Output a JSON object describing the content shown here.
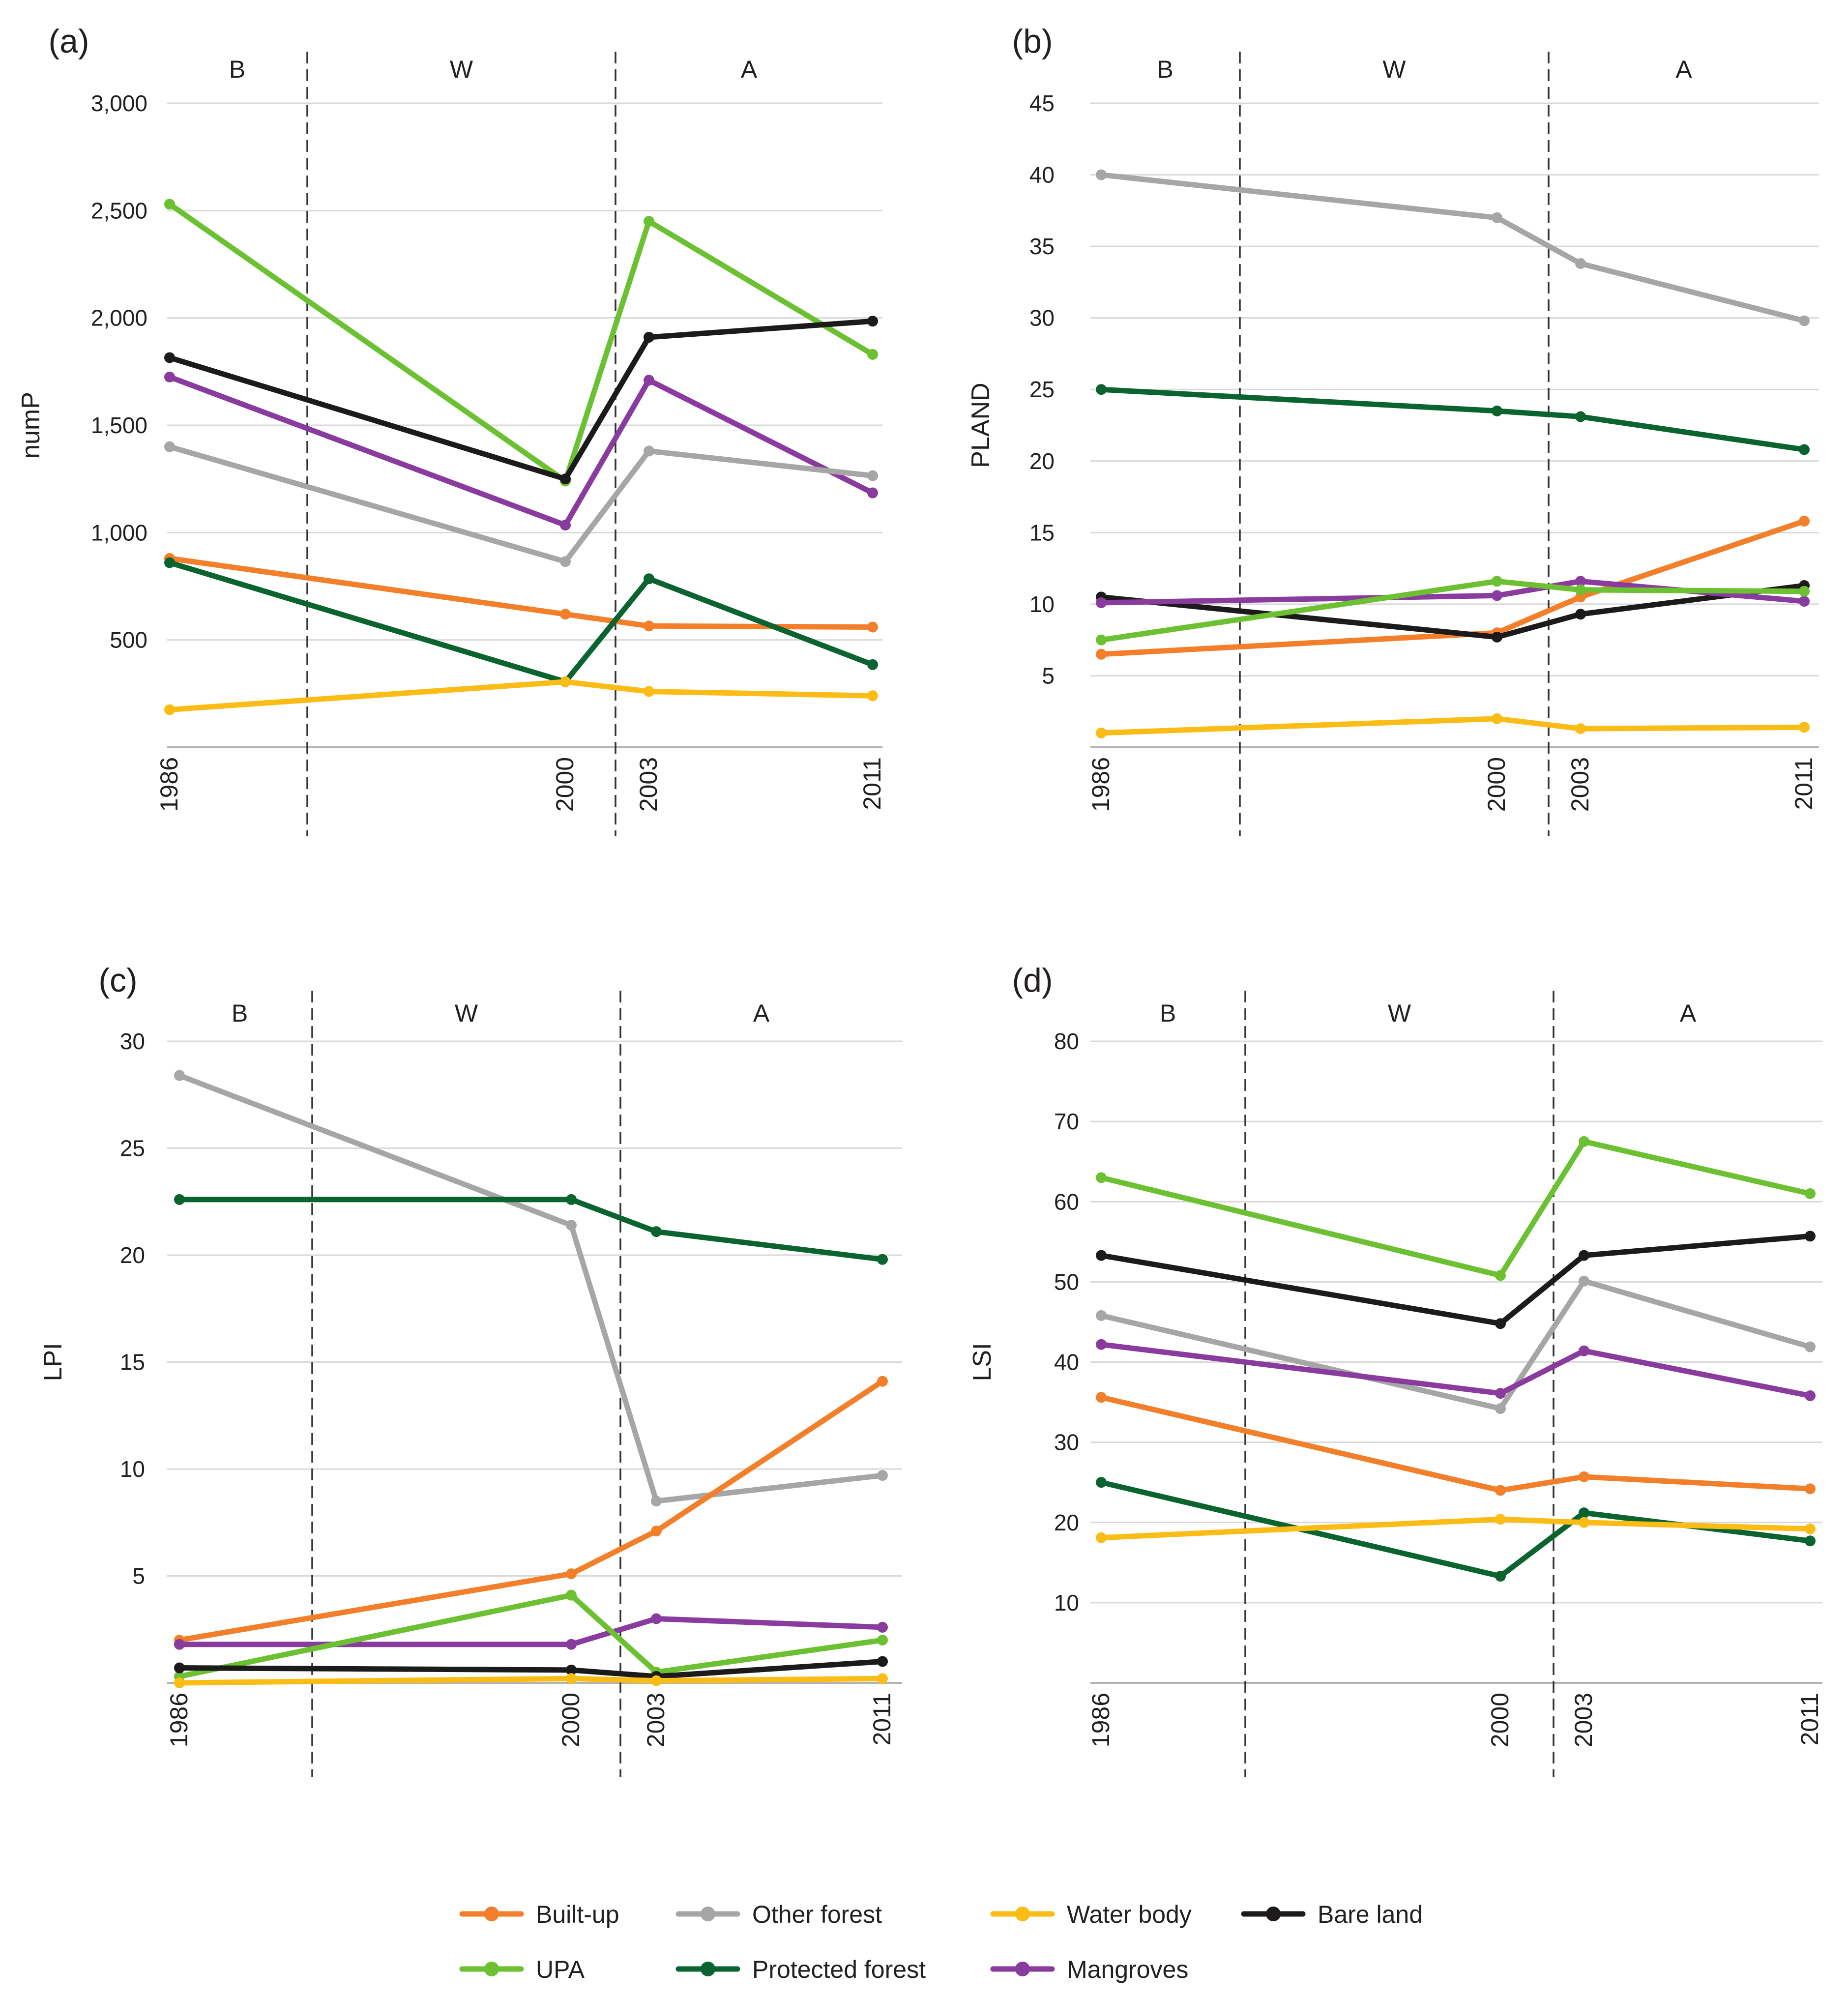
{
  "chart_data": [
    {
      "type": "line",
      "panel_label": "(a)",
      "ylabel": "numP",
      "x": [
        "1986",
        "2000",
        "2003",
        "2011"
      ],
      "ylim": [
        0,
        3000
      ],
      "yticks": [
        500,
        1000,
        1500,
        2000,
        2500,
        3000
      ],
      "ytick_labels": [
        "500",
        "1,000",
        "1,500",
        "2,000",
        "2,500",
        "3,000"
      ],
      "periods": [
        "B",
        "W",
        "A"
      ],
      "series": [
        {
          "name": "UPA",
          "values": [
            2530,
            1240,
            2450,
            1830
          ]
        },
        {
          "name": "Bare land",
          "values": [
            1815,
            1250,
            1910,
            1985
          ]
        },
        {
          "name": "Mangroves",
          "values": [
            1725,
            1035,
            1710,
            1185
          ]
        },
        {
          "name": "Other forest",
          "values": [
            1400,
            865,
            1380,
            1265
          ]
        },
        {
          "name": "Built-up",
          "values": [
            880,
            620,
            565,
            560
          ]
        },
        {
          "name": "Protected forest",
          "values": [
            860,
            305,
            785,
            385
          ]
        },
        {
          "name": "Water body",
          "values": [
            175,
            305,
            260,
            240
          ]
        }
      ]
    },
    {
      "type": "line",
      "panel_label": "(b)",
      "ylabel": "PLAND",
      "x": [
        "1986",
        "2000",
        "2003",
        "2011"
      ],
      "ylim": [
        0,
        45
      ],
      "yticks": [
        5,
        10,
        15,
        20,
        25,
        30,
        35,
        40,
        45
      ],
      "ytick_labels": [
        "5",
        "10",
        "15",
        "20",
        "25",
        "30",
        "35",
        "40",
        "45"
      ],
      "periods": [
        "B",
        "W",
        "A"
      ],
      "series": [
        {
          "name": "Other forest",
          "values": [
            40.0,
            37.0,
            33.8,
            29.8
          ]
        },
        {
          "name": "Protected forest",
          "values": [
            25.0,
            23.5,
            23.1,
            20.8
          ]
        },
        {
          "name": "Built-up",
          "values": [
            6.5,
            8.0,
            10.5,
            15.8
          ]
        },
        {
          "name": "Bare land",
          "values": [
            10.5,
            7.7,
            9.3,
            11.3
          ]
        },
        {
          "name": "Mangroves",
          "values": [
            10.1,
            10.6,
            11.6,
            10.2
          ]
        },
        {
          "name": "UPA",
          "values": [
            7.5,
            11.6,
            11.0,
            10.9
          ]
        },
        {
          "name": "Water body",
          "values": [
            1.0,
            2.0,
            1.3,
            1.4
          ]
        }
      ]
    },
    {
      "type": "line",
      "panel_label": "(c)",
      "ylabel": "LPI",
      "x": [
        "1986",
        "2000",
        "2003",
        "2011"
      ],
      "ylim": [
        0,
        30
      ],
      "yticks": [
        5,
        10,
        15,
        20,
        25,
        30
      ],
      "ytick_labels": [
        "5",
        "10",
        "15",
        "20",
        "25",
        "30"
      ],
      "periods": [
        "B",
        "W",
        "A"
      ],
      "series": [
        {
          "name": "Other forest",
          "values": [
            28.4,
            21.4,
            8.5,
            9.7
          ]
        },
        {
          "name": "Protected forest",
          "values": [
            22.6,
            22.6,
            21.1,
            19.8
          ]
        },
        {
          "name": "Built-up",
          "values": [
            2.0,
            5.1,
            7.1,
            14.1
          ]
        },
        {
          "name": "Mangroves",
          "values": [
            1.8,
            1.8,
            3.0,
            2.6
          ]
        },
        {
          "name": "UPA",
          "values": [
            0.3,
            4.1,
            0.5,
            2.0
          ]
        },
        {
          "name": "Bare land",
          "values": [
            0.7,
            0.6,
            0.3,
            1.0
          ]
        },
        {
          "name": "Water body",
          "values": [
            0.0,
            0.2,
            0.1,
            0.2
          ]
        }
      ]
    },
    {
      "type": "line",
      "panel_label": "(d)",
      "ylabel": "LSI",
      "x": [
        "1986",
        "2000",
        "2003",
        "2011"
      ],
      "ylim": [
        0,
        80
      ],
      "yticks": [
        10,
        20,
        30,
        40,
        50,
        60,
        70,
        80
      ],
      "ytick_labels": [
        "10",
        "20",
        "30",
        "40",
        "50",
        "60",
        "70",
        "80"
      ],
      "periods": [
        "B",
        "W",
        "A"
      ],
      "series": [
        {
          "name": "UPA",
          "values": [
            63.0,
            50.8,
            67.5,
            61.0
          ]
        },
        {
          "name": "Bare land",
          "values": [
            53.3,
            44.8,
            53.3,
            55.7
          ]
        },
        {
          "name": "Other forest",
          "values": [
            45.8,
            34.2,
            50.1,
            41.9
          ]
        },
        {
          "name": "Mangroves",
          "values": [
            42.2,
            36.1,
            41.4,
            35.8
          ]
        },
        {
          "name": "Built-up",
          "values": [
            35.6,
            24.0,
            25.7,
            24.2
          ]
        },
        {
          "name": "Protected forest",
          "values": [
            25.0,
            13.3,
            21.2,
            17.7
          ]
        },
        {
          "name": "Water body",
          "values": [
            18.1,
            20.4,
            20.0,
            19.2
          ]
        }
      ]
    }
  ],
  "legend": [
    {
      "name": "Built-up",
      "color": "#f47f2a"
    },
    {
      "name": "Other forest",
      "color": "#a6a6a6"
    },
    {
      "name": "Water body",
      "color": "#fbbc15"
    },
    {
      "name": "Bare land",
      "color": "#1c1a1b"
    },
    {
      "name": "UPA",
      "color": "#6cc132"
    },
    {
      "name": "Protected forest",
      "color": "#0b6430"
    },
    {
      "name": "Mangroves",
      "color": "#8a3b9e"
    }
  ]
}
